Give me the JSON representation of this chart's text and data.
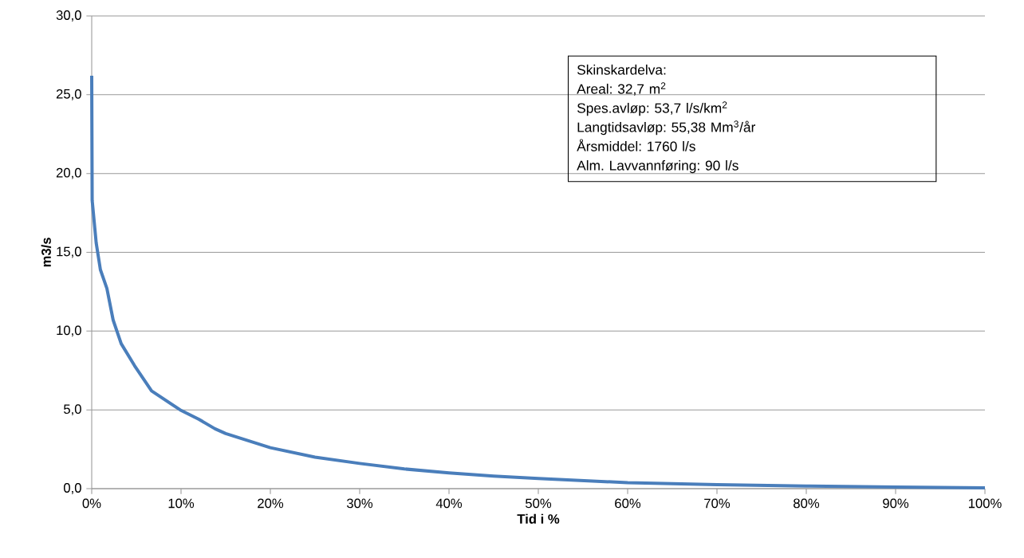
{
  "chart_data": {
    "type": "line",
    "xlabel": "Tid i %",
    "ylabel": "m3/s",
    "x": [
      0,
      0.05,
      0.5,
      0.97,
      1.7,
      2.4,
      3.3,
      4.8,
      6.7,
      9.9,
      12,
      13.8,
      15,
      20,
      25,
      30,
      35,
      40,
      45,
      50,
      60,
      70,
      80,
      90,
      100
    ],
    "series": [
      {
        "color": "#4a7ebb",
        "values": [
          26.2,
          18.3,
          15.6,
          13.9,
          12.7,
          10.7,
          9.2,
          7.8,
          6.2,
          5.0,
          4.4,
          3.8,
          3.5,
          2.6,
          2.0,
          1.6,
          1.25,
          1.0,
          0.8,
          0.65,
          0.38,
          0.25,
          0.17,
          0.1,
          0.05
        ]
      }
    ],
    "xlim": [
      0,
      100
    ],
    "ylim": [
      0,
      30
    ],
    "xticks": [
      {
        "value": 0,
        "label": "0%"
      },
      {
        "value": 10,
        "label": "10%"
      },
      {
        "value": 20,
        "label": "20%"
      },
      {
        "value": 30,
        "label": "30%"
      },
      {
        "value": 40,
        "label": "40%"
      },
      {
        "value": 50,
        "label": "50%"
      },
      {
        "value": 60,
        "label": "60%"
      },
      {
        "value": 70,
        "label": "70%"
      },
      {
        "value": 80,
        "label": "80%"
      },
      {
        "value": 90,
        "label": "90%"
      },
      {
        "value": 100,
        "label": "100%"
      }
    ],
    "yticks": [
      {
        "value": 0,
        "label": "0,0"
      },
      {
        "value": 5,
        "label": "5,0"
      },
      {
        "value": 10,
        "label": "10,0"
      },
      {
        "value": 15,
        "label": "15,0"
      },
      {
        "value": 20,
        "label": "20,0"
      },
      {
        "value": 25,
        "label": "25,0"
      },
      {
        "value": 30,
        "label": "30,0"
      }
    ],
    "grid": "y",
    "marker": "none",
    "line_style": "solid",
    "annotations": [
      "Skinskardelva:",
      "Areal: 32,7 m$^{2}$",
      "Spes.avløp: 53,7 l/s/km$^{2}$",
      "Langtidsavløp: 55,38 Mm$^{3}$/år",
      "Årsmiddel: 1760 l/s",
      "Alm. Lavvannføring: 90 l/s"
    ]
  }
}
